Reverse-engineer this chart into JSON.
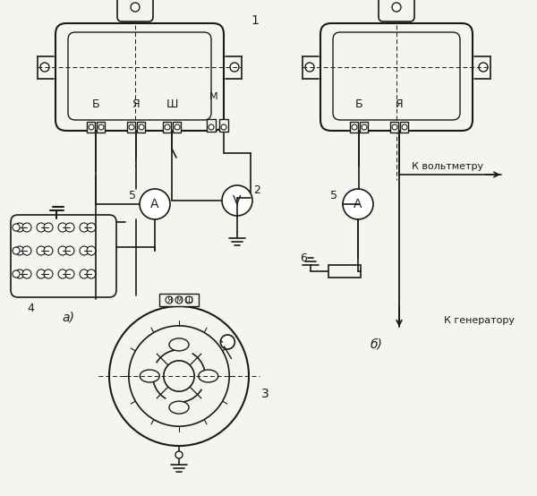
{
  "bg_color": "#f5f5f0",
  "line_color": "#1a1a1a",
  "label_a": "а)",
  "label_b": "б)",
  "label_1": "1",
  "label_2": "2",
  "label_3": "3",
  "label_4": "4",
  "label_5a": "5",
  "label_5b": "5",
  "label_6": "6",
  "terminal_B": "Б",
  "terminal_Ya": "Я",
  "terminal_Sh": "Ш",
  "terminal_M": "М",
  "terminal_B2": "Б",
  "terminal_Ya2": "Я",
  "text_voltmeter": "К вольтметру",
  "text_generator": "К генератору",
  "text_A": "A",
  "text_V": "V"
}
